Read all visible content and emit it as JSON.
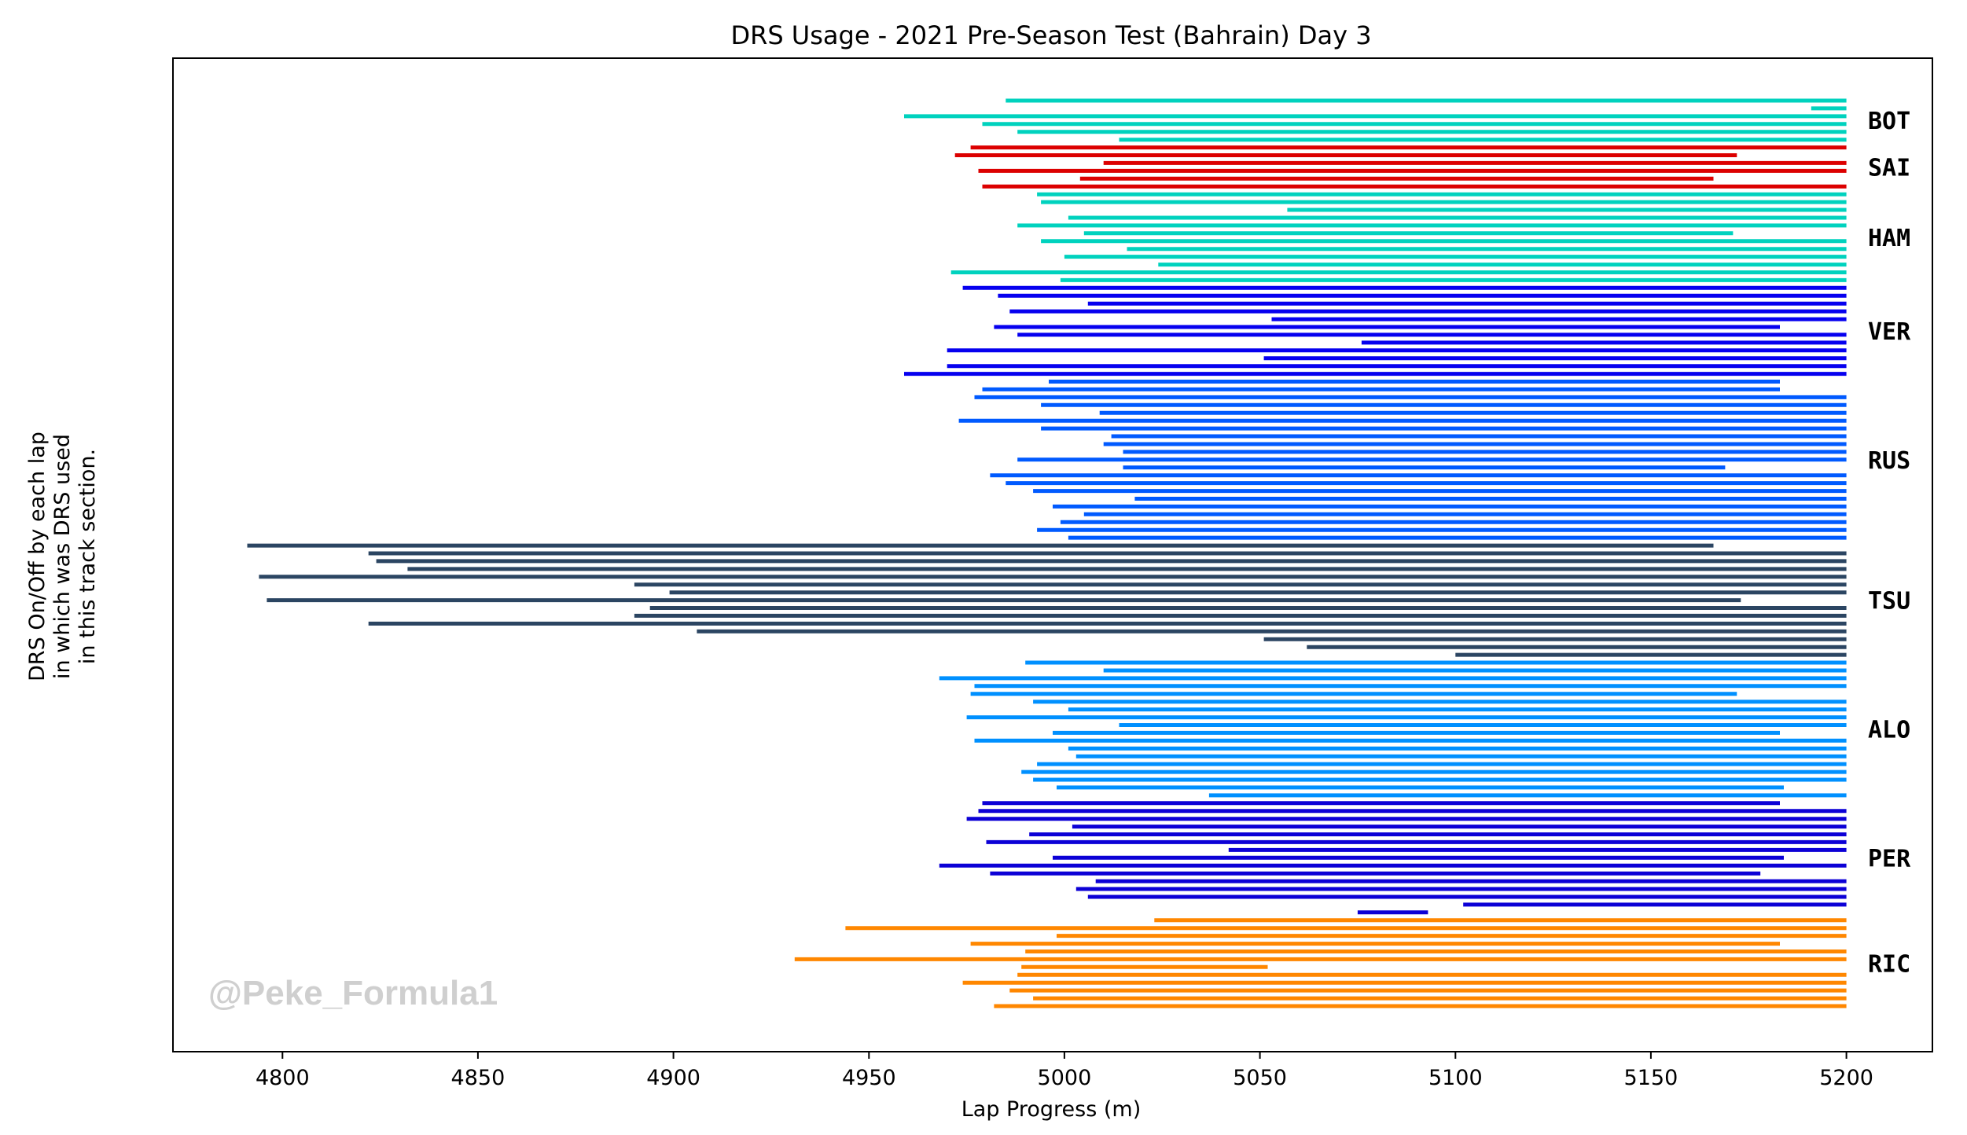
{
  "chart_data": {
    "type": "bar",
    "title": "DRS Usage - 2021 Pre-Season Test (Bahrain) Day 3",
    "xlabel": "Lap Progress (m)",
    "ylabel": [
      "DRS On/Off by each lap",
      "in which was DRS used",
      "in this track section."
    ],
    "xlim": [
      4772,
      5222
    ],
    "xticks": [
      4800,
      4850,
      4900,
      4950,
      5000,
      5050,
      5100,
      5150,
      5200
    ],
    "watermark": "@Peke_Formula1",
    "series": [
      {
        "name": "BOT",
        "color": "#00d2be",
        "segments": [
          [
            4985,
            5200
          ],
          [
            5191,
            5200
          ],
          [
            4959,
            5200
          ],
          [
            4979,
            5200
          ],
          [
            4988,
            5200
          ],
          [
            5014,
            5200
          ]
        ]
      },
      {
        "name": "SAI",
        "color": "#dc0000",
        "segments": [
          [
            4976,
            5200
          ],
          [
            4972,
            5172
          ],
          [
            5010,
            5200
          ],
          [
            4978,
            5200
          ],
          [
            5004,
            5166
          ],
          [
            4979,
            5200
          ]
        ]
      },
      {
        "name": "HAM",
        "color": "#00d2be",
        "segments": [
          [
            4993,
            5200
          ],
          [
            4994,
            5200
          ],
          [
            5057,
            5200
          ],
          [
            5001,
            5200
          ],
          [
            4988,
            5200
          ],
          [
            5005,
            5171
          ],
          [
            4994,
            5200
          ],
          [
            5016,
            5200
          ],
          [
            5000,
            5200
          ],
          [
            5024,
            5200
          ],
          [
            4971,
            5200
          ],
          [
            4999,
            5200
          ]
        ]
      },
      {
        "name": "VER",
        "color": "#0600ef",
        "segments": [
          [
            4974,
            5200
          ],
          [
            4983,
            5200
          ],
          [
            5006,
            5200
          ],
          [
            4986,
            5200
          ],
          [
            5053,
            5200
          ],
          [
            4982,
            5183
          ],
          [
            4988,
            5200
          ],
          [
            5076,
            5200
          ],
          [
            4970,
            5200
          ],
          [
            5051,
            5200
          ],
          [
            4970,
            5200
          ],
          [
            4959,
            5200
          ]
        ]
      },
      {
        "name": "RUS",
        "color": "#005aff",
        "segments": [
          [
            4996,
            5183
          ],
          [
            4979,
            5183
          ],
          [
            4977,
            5200
          ],
          [
            4994,
            5200
          ],
          [
            5009,
            5200
          ],
          [
            4973,
            5200
          ],
          [
            4994,
            5200
          ],
          [
            5012,
            5200
          ],
          [
            5010,
            5200
          ],
          [
            5015,
            5200
          ],
          [
            4988,
            5200
          ],
          [
            5015,
            5169
          ],
          [
            4981,
            5200
          ],
          [
            4985,
            5200
          ],
          [
            4992,
            5200
          ],
          [
            5018,
            5200
          ],
          [
            4997,
            5200
          ],
          [
            5005,
            5200
          ],
          [
            4999,
            5200
          ],
          [
            4993,
            5200
          ],
          [
            5001,
            5200
          ]
        ]
      },
      {
        "name": "TSU",
        "color": "#2b4562",
        "segments": [
          [
            4791,
            5166
          ],
          [
            4822,
            5200
          ],
          [
            4824,
            5200
          ],
          [
            4832,
            5200
          ],
          [
            4794,
            5200
          ],
          [
            4890,
            5200
          ],
          [
            4899,
            5200
          ],
          [
            4796,
            5173
          ],
          [
            4894,
            5200
          ],
          [
            4890,
            5200
          ],
          [
            4822,
            5200
          ],
          [
            4906,
            5200
          ],
          [
            5051,
            5200
          ],
          [
            5062,
            5200
          ],
          [
            5100,
            5200
          ]
        ]
      },
      {
        "name": "ALO",
        "color": "#0090ff",
        "segments": [
          [
            4990,
            5200
          ],
          [
            5010,
            5200
          ],
          [
            4968,
            5200
          ],
          [
            4977,
            5200
          ],
          [
            4976,
            5172
          ],
          [
            4992,
            5200
          ],
          [
            5001,
            5200
          ],
          [
            4975,
            5200
          ],
          [
            5014,
            5200
          ],
          [
            4997,
            5183
          ],
          [
            4977,
            5200
          ],
          [
            5001,
            5200
          ],
          [
            5003,
            5200
          ],
          [
            4993,
            5200
          ],
          [
            4989,
            5200
          ],
          [
            4992,
            5200
          ],
          [
            4998,
            5184
          ],
          [
            5037,
            5200
          ]
        ]
      },
      {
        "name": "PER",
        "color": "#0c00d6",
        "segments": [
          [
            4979,
            5183
          ],
          [
            4978,
            5200
          ],
          [
            4975,
            5200
          ],
          [
            5002,
            5200
          ],
          [
            4991,
            5200
          ],
          [
            4980,
            5200
          ],
          [
            5042,
            5200
          ],
          [
            4997,
            5184
          ],
          [
            4968,
            5200
          ],
          [
            4981,
            5178
          ],
          [
            5008,
            5200
          ],
          [
            5003,
            5200
          ],
          [
            5006,
            5200
          ],
          [
            5102,
            5200
          ],
          [
            5075,
            5093
          ]
        ]
      },
      {
        "name": "RIC",
        "color": "#ff8700",
        "segments": [
          [
            5023,
            5200
          ],
          [
            4944,
            5200
          ],
          [
            4998,
            5200
          ],
          [
            4976,
            5183
          ],
          [
            4990,
            5200
          ],
          [
            4931,
            5200
          ],
          [
            4989,
            5052
          ],
          [
            4988,
            5200
          ],
          [
            4974,
            5200
          ],
          [
            4986,
            5200
          ],
          [
            4992,
            5200
          ],
          [
            4982,
            5200
          ]
        ]
      }
    ]
  }
}
